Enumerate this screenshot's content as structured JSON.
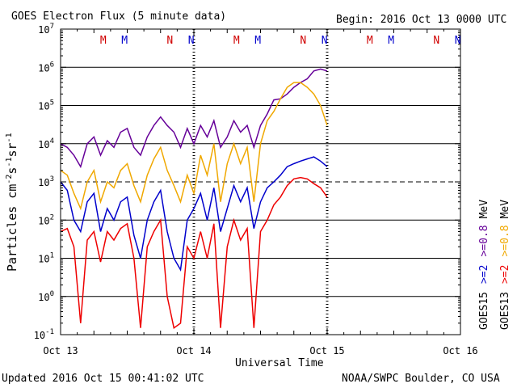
{
  "chart_data": {
    "type": "line",
    "title": "GOES Electron Flux (5 minute data)",
    "begin_label": "Begin: 2016 Oct 13 0000 UTC",
    "xlabel": "Universal Time",
    "ylabel": "Particles cm⁻²s⁻¹sr⁻¹",
    "ylabel_parts": {
      "base": "Particles cm",
      "sup1": "-2",
      "mid1": "s",
      "sup2": "-1",
      "mid2": "sr",
      "sup3": "-1"
    },
    "x_ticks": [
      "Oct 13",
      "Oct 14",
      "Oct 15",
      "Oct 16"
    ],
    "x_range_days": [
      0,
      3
    ],
    "y_range_log10": [
      -1,
      7
    ],
    "y_tick_exponents": [
      -1,
      0,
      1,
      2,
      3,
      4,
      5,
      6,
      7
    ],
    "y_tick_base": "10",
    "y_tick_labels": [
      "-1",
      "0",
      "1",
      "2",
      "3",
      "4",
      "5",
      "6",
      "7"
    ],
    "threshold_line": 1000,
    "updated": "Updated 2016 Oct 15 00:41:02 UTC",
    "credit": "NOAA/SWPC Boulder, CO USA",
    "legend": {
      "goes15": "GOES15",
      "goes13": "GOES13",
      "blue": ">=2",
      "purple": ">=0.8",
      "red": ">=2",
      "orange": ">=0.8",
      "mev": "MeV"
    },
    "markers": [
      {
        "t": 0.32,
        "label": "M",
        "color": "#d00000"
      },
      {
        "t": 0.48,
        "label": "M",
        "color": "#0000cc"
      },
      {
        "t": 0.82,
        "label": "N",
        "color": "#d00000"
      },
      {
        "t": 0.98,
        "label": "N",
        "color": "#0000cc"
      },
      {
        "t": 1.32,
        "label": "M",
        "color": "#d00000"
      },
      {
        "t": 1.48,
        "label": "M",
        "color": "#0000cc"
      },
      {
        "t": 1.82,
        "label": "N",
        "color": "#d00000"
      },
      {
        "t": 1.98,
        "label": "N",
        "color": "#0000cc"
      },
      {
        "t": 2.32,
        "label": "M",
        "color": "#d00000"
      },
      {
        "t": 2.48,
        "label": "M",
        "color": "#0000cc"
      },
      {
        "t": 2.82,
        "label": "N",
        "color": "#d00000"
      },
      {
        "t": 2.98,
        "label": "N",
        "color": "#0000cc"
      }
    ],
    "series": [
      {
        "name": "GOES15 >=0.8 MeV",
        "color": "#660099",
        "x": [
          0,
          0.05,
          0.1,
          0.15,
          0.2,
          0.25,
          0.3,
          0.35,
          0.4,
          0.45,
          0.5,
          0.55,
          0.6,
          0.65,
          0.7,
          0.75,
          0.8,
          0.85,
          0.9,
          0.95,
          1.0,
          1.05,
          1.1,
          1.15,
          1.2,
          1.25,
          1.3,
          1.35,
          1.4,
          1.45,
          1.5,
          1.55,
          1.6,
          1.65,
          1.7,
          1.75,
          1.8,
          1.85,
          1.9,
          1.95,
          2.0
        ],
        "y": [
          10000,
          8000,
          5000,
          2500,
          10000,
          15000,
          5000,
          12000,
          8000,
          20000,
          25000,
          8000,
          5000,
          15000,
          30000,
          50000,
          30000,
          20000,
          8000,
          25000,
          10000,
          30000,
          15000,
          40000,
          8000,
          15000,
          40000,
          20000,
          30000,
          8000,
          30000,
          60000,
          140000,
          150000,
          200000,
          300000,
          400000,
          500000,
          800000,
          900000,
          800000
        ]
      },
      {
        "name": "GOES13 >=0.8 MeV",
        "color": "#f0a800",
        "x": [
          0,
          0.05,
          0.1,
          0.15,
          0.2,
          0.25,
          0.3,
          0.35,
          0.4,
          0.45,
          0.5,
          0.55,
          0.6,
          0.65,
          0.7,
          0.75,
          0.8,
          0.85,
          0.9,
          0.95,
          1.0,
          1.05,
          1.1,
          1.15,
          1.2,
          1.25,
          1.3,
          1.35,
          1.4,
          1.45,
          1.5,
          1.55,
          1.6,
          1.65,
          1.7,
          1.75,
          1.8,
          1.85,
          1.9,
          1.95,
          2.0
        ],
        "y": [
          2000,
          1500,
          500,
          200,
          1000,
          2000,
          300,
          1000,
          700,
          2000,
          3000,
          800,
          300,
          1500,
          4000,
          8000,
          2000,
          800,
          300,
          1500,
          500,
          5000,
          1500,
          10000,
          300,
          3000,
          10000,
          3000,
          8000,
          300,
          10000,
          40000,
          70000,
          150000,
          300000,
          400000,
          400000,
          300000,
          200000,
          100000,
          30000
        ]
      },
      {
        "name": "GOES15 >=2 MeV",
        "color": "#0000cc",
        "x": [
          0,
          0.05,
          0.1,
          0.15,
          0.2,
          0.25,
          0.3,
          0.35,
          0.4,
          0.45,
          0.5,
          0.55,
          0.6,
          0.65,
          0.7,
          0.75,
          0.8,
          0.85,
          0.9,
          0.95,
          1.0,
          1.05,
          1.1,
          1.15,
          1.2,
          1.25,
          1.3,
          1.35,
          1.4,
          1.45,
          1.5,
          1.55,
          1.6,
          1.65,
          1.7,
          1.75,
          1.8,
          1.85,
          1.9,
          1.95,
          2.0
        ],
        "y": [
          1000,
          600,
          100,
          50,
          300,
          500,
          50,
          200,
          100,
          300,
          400,
          40,
          10,
          100,
          300,
          600,
          50,
          10,
          5,
          100,
          200,
          500,
          100,
          700,
          50,
          200,
          800,
          300,
          700,
          60,
          300,
          700,
          1000,
          1500,
          2500,
          3000,
          3500,
          4000,
          4500,
          3500,
          2500
        ]
      },
      {
        "name": "GOES13 >=2 MeV",
        "color": "#ee0000",
        "x": [
          0,
          0.05,
          0.1,
          0.15,
          0.2,
          0.25,
          0.3,
          0.35,
          0.4,
          0.45,
          0.5,
          0.55,
          0.6,
          0.65,
          0.7,
          0.75,
          0.8,
          0.85,
          0.9,
          0.95,
          1.0,
          1.05,
          1.1,
          1.15,
          1.2,
          1.25,
          1.3,
          1.35,
          1.4,
          1.45,
          1.5,
          1.55,
          1.6,
          1.65,
          1.7,
          1.75,
          1.8,
          1.85,
          1.9,
          1.95,
          2.0
        ],
        "y": [
          50,
          60,
          20,
          0.2,
          30,
          50,
          8,
          50,
          30,
          60,
          80,
          10,
          0.15,
          20,
          50,
          100,
          1,
          0.15,
          0.2,
          20,
          10,
          50,
          10,
          80,
          0.15,
          20,
          100,
          30,
          60,
          0.15,
          50,
          100,
          250,
          400,
          800,
          1200,
          1300,
          1200,
          900,
          700,
          400
        ]
      }
    ]
  }
}
